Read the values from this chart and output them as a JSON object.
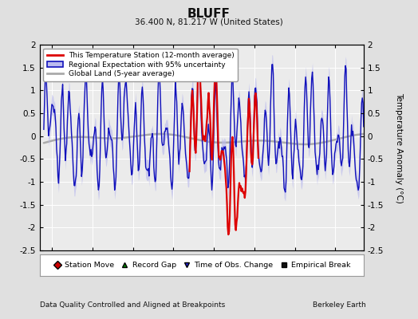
{
  "title": "BLUFF",
  "subtitle": "36.400 N, 81.217 W (United States)",
  "ylabel": "Temperature Anomaly (°C)",
  "xlabel_bottom": "Data Quality Controlled and Aligned at Breakpoints",
  "xlabel_right": "Berkeley Earth",
  "ylim": [
    -2.5,
    2.0
  ],
  "xlim": [
    1933.5,
    1973.5
  ],
  "xticks": [
    1935,
    1940,
    1945,
    1950,
    1955,
    1960,
    1965,
    1970
  ],
  "yticks": [
    -2.5,
    -2,
    -1.5,
    -1,
    -0.5,
    0,
    0.5,
    1,
    1.5,
    2
  ],
  "bg_color": "#e0e0e0",
  "plot_bg_color": "#ebebeb",
  "legend_station": "This Temperature Station (12-month average)",
  "legend_regional": "Regional Expectation with 95% uncertainty",
  "legend_global": "Global Land (5-year average)",
  "station_color": "#dd0000",
  "regional_color": "#1111bb",
  "regional_fill_color": "#bbbbee",
  "global_color": "#aaaaaa",
  "marker_station_move": {
    "color": "#cc0000",
    "marker": "D",
    "label": "Station Move"
  },
  "marker_record_gap": {
    "color": "#008800",
    "marker": "^",
    "label": "Record Gap"
  },
  "marker_obs_change": {
    "color": "#2222cc",
    "marker": "v",
    "label": "Time of Obs. Change"
  },
  "marker_empirical": {
    "color": "#111111",
    "marker": "s",
    "label": "Empirical Break"
  }
}
